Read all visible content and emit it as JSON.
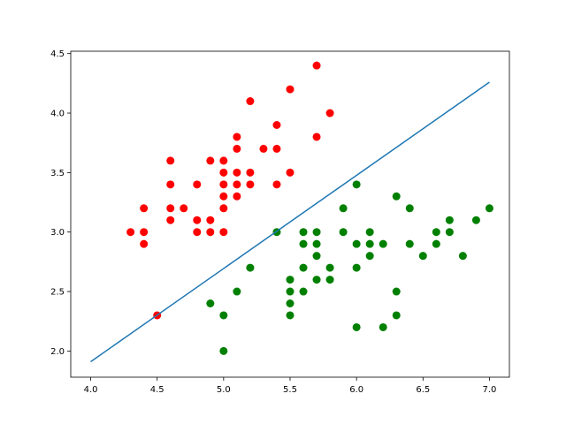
{
  "chart_data": {
    "type": "scatter",
    "title": "",
    "xlabel": "",
    "ylabel": "",
    "xlim": [
      3.85,
      7.15
    ],
    "ylim": [
      1.78,
      4.52
    ],
    "grid": false,
    "legend": "none",
    "x_ticks": [
      "4.0",
      "4.5",
      "5.0",
      "5.5",
      "6.0",
      "6.5",
      "7.0"
    ],
    "y_ticks": [
      "2.0",
      "2.5",
      "3.0",
      "3.5",
      "4.0",
      "4.5"
    ],
    "series": [
      {
        "kind": "scatter",
        "color": "#ff0000",
        "points": [
          [
            4.3,
            3.0
          ],
          [
            4.4,
            3.2
          ],
          [
            4.4,
            3.0
          ],
          [
            4.4,
            2.9
          ],
          [
            4.5,
            2.3
          ],
          [
            4.6,
            3.6
          ],
          [
            4.6,
            3.4
          ],
          [
            4.6,
            3.2
          ],
          [
            4.6,
            3.1
          ],
          [
            4.7,
            3.2
          ],
          [
            4.8,
            3.4
          ],
          [
            4.8,
            3.1
          ],
          [
            4.8,
            3.0
          ],
          [
            4.9,
            3.6
          ],
          [
            4.9,
            3.1
          ],
          [
            4.9,
            3.0
          ],
          [
            5.0,
            3.6
          ],
          [
            5.0,
            3.5
          ],
          [
            5.0,
            3.4
          ],
          [
            5.0,
            3.3
          ],
          [
            5.0,
            3.2
          ],
          [
            5.0,
            3.0
          ],
          [
            5.1,
            3.8
          ],
          [
            5.1,
            3.7
          ],
          [
            5.1,
            3.5
          ],
          [
            5.1,
            3.4
          ],
          [
            5.1,
            3.3
          ],
          [
            5.2,
            4.1
          ],
          [
            5.2,
            3.5
          ],
          [
            5.2,
            3.4
          ],
          [
            5.3,
            3.7
          ],
          [
            5.4,
            3.9
          ],
          [
            5.4,
            3.7
          ],
          [
            5.4,
            3.4
          ],
          [
            5.5,
            4.2
          ],
          [
            5.5,
            3.5
          ],
          [
            5.7,
            4.4
          ],
          [
            5.7,
            3.8
          ],
          [
            5.8,
            4.0
          ]
        ]
      },
      {
        "kind": "scatter",
        "color": "#008000",
        "points": [
          [
            4.9,
            2.4
          ],
          [
            5.0,
            2.3
          ],
          [
            5.0,
            2.0
          ],
          [
            5.1,
            2.5
          ],
          [
            5.2,
            2.7
          ],
          [
            5.4,
            3.0
          ],
          [
            5.5,
            2.6
          ],
          [
            5.5,
            2.5
          ],
          [
            5.5,
            2.4
          ],
          [
            5.5,
            2.3
          ],
          [
            5.6,
            3.0
          ],
          [
            5.6,
            2.9
          ],
          [
            5.6,
            2.7
          ],
          [
            5.6,
            2.5
          ],
          [
            5.7,
            3.0
          ],
          [
            5.7,
            2.9
          ],
          [
            5.7,
            2.8
          ],
          [
            5.7,
            2.6
          ],
          [
            5.8,
            2.7
          ],
          [
            5.8,
            2.6
          ],
          [
            5.9,
            3.2
          ],
          [
            5.9,
            3.0
          ],
          [
            6.0,
            3.4
          ],
          [
            6.0,
            2.9
          ],
          [
            6.0,
            2.7
          ],
          [
            6.0,
            2.2
          ],
          [
            6.1,
            3.0
          ],
          [
            6.1,
            2.9
          ],
          [
            6.1,
            2.8
          ],
          [
            6.2,
            2.9
          ],
          [
            6.2,
            2.2
          ],
          [
            6.3,
            3.3
          ],
          [
            6.3,
            2.5
          ],
          [
            6.3,
            2.3
          ],
          [
            6.4,
            3.2
          ],
          [
            6.4,
            2.9
          ],
          [
            6.5,
            2.8
          ],
          [
            6.6,
            3.0
          ],
          [
            6.6,
            2.9
          ],
          [
            6.7,
            3.1
          ],
          [
            6.7,
            3.0
          ],
          [
            6.8,
            2.8
          ],
          [
            6.9,
            3.1
          ],
          [
            7.0,
            3.2
          ]
        ]
      },
      {
        "kind": "line",
        "color": "#1f77b4",
        "points": [
          [
            4.0,
            1.91
          ],
          [
            7.0,
            4.26
          ]
        ]
      }
    ]
  }
}
